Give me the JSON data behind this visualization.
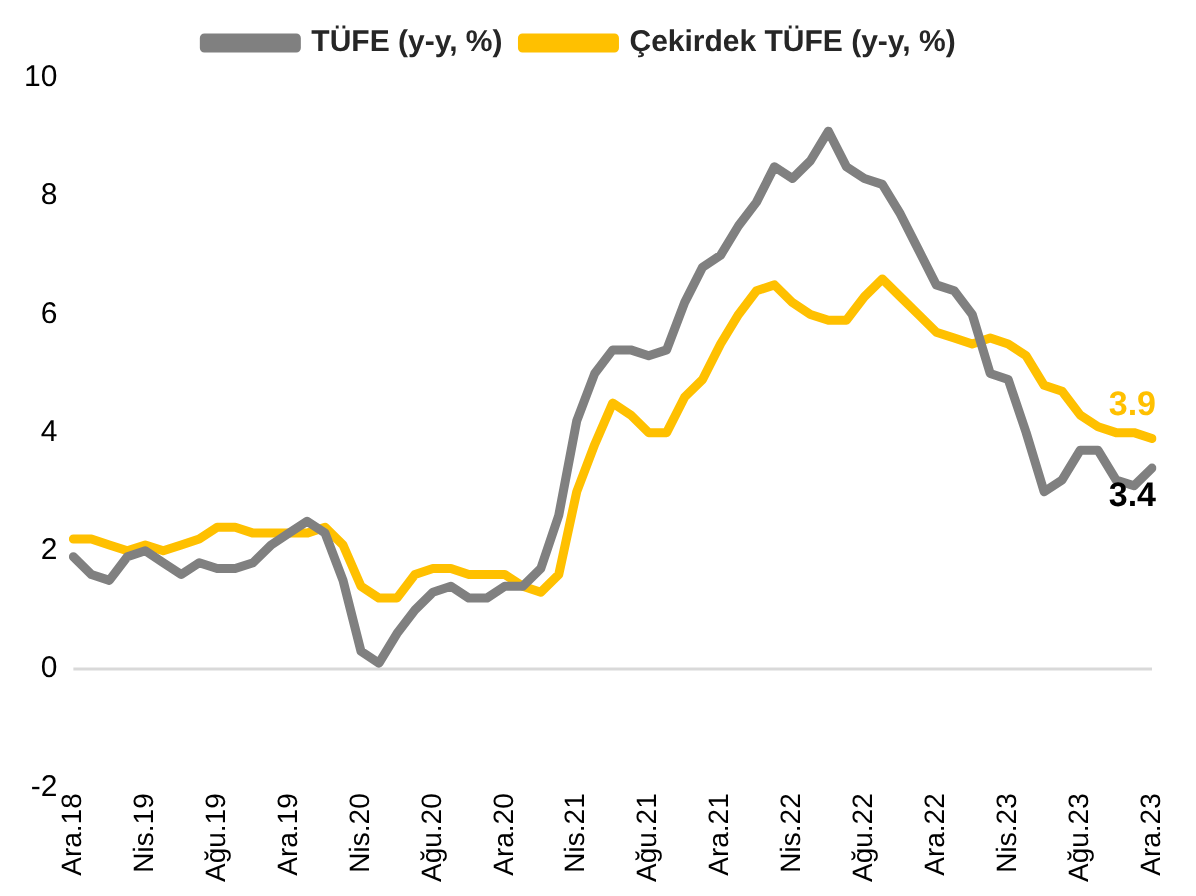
{
  "chart_data": {
    "type": "line",
    "categories": [
      "Ara.18",
      null,
      null,
      null,
      "Nis.19",
      null,
      null,
      null,
      "Ağu.19",
      null,
      null,
      null,
      "Ara.19",
      null,
      null,
      null,
      "Nis.20",
      null,
      null,
      null,
      "Ağu.20",
      null,
      null,
      null,
      "Ara.20",
      null,
      null,
      null,
      "Nis.21",
      null,
      null,
      null,
      "Ağu.21",
      null,
      null,
      null,
      "Ara.21",
      null,
      null,
      null,
      "Nis.22",
      null,
      null,
      null,
      "Ağu.22",
      null,
      null,
      null,
      "Ara.22",
      null,
      null,
      null,
      "Nis.23",
      null,
      null,
      null,
      "Ağu.23",
      null,
      null,
      null,
      "Ara.23"
    ],
    "series": [
      {
        "name": "TÜFE (y-y, %)",
        "color": "#808080",
        "values": [
          1.9,
          1.6,
          1.5,
          1.9,
          2.0,
          1.8,
          1.6,
          1.8,
          1.7,
          1.7,
          1.8,
          2.1,
          2.3,
          2.5,
          2.3,
          1.5,
          0.3,
          0.1,
          0.6,
          1.0,
          1.3,
          1.4,
          1.2,
          1.2,
          1.4,
          1.4,
          1.7,
          2.6,
          4.2,
          5.0,
          5.4,
          5.4,
          5.3,
          5.4,
          6.2,
          6.8,
          7.0,
          7.5,
          7.9,
          8.5,
          8.3,
          8.6,
          9.1,
          8.5,
          8.3,
          8.2,
          7.7,
          7.1,
          6.5,
          6.4,
          6.0,
          5.0,
          4.9,
          4.0,
          3.0,
          3.2,
          3.7,
          3.7,
          3.2,
          3.1,
          3.4
        ],
        "value_labels": [
          null,
          null,
          null,
          null,
          null,
          null,
          null,
          null,
          null,
          null,
          null,
          null,
          null,
          null,
          null,
          null,
          null,
          null,
          null,
          null,
          null,
          null,
          null,
          null,
          null,
          null,
          null,
          null,
          null,
          null,
          null,
          null,
          null,
          null,
          null,
          null,
          null,
          null,
          null,
          null,
          null,
          null,
          null,
          null,
          null,
          null,
          null,
          null,
          null,
          null,
          null,
          null,
          null,
          null,
          null,
          null,
          null,
          null,
          null,
          null,
          "3.4"
        ]
      },
      {
        "name": "Çekirdek TÜFE (y-y, %)",
        "color": "#ffc000",
        "values": [
          2.2,
          2.2,
          2.1,
          2.0,
          2.1,
          2.0,
          2.1,
          2.2,
          2.4,
          2.4,
          2.3,
          2.3,
          2.3,
          2.3,
          2.4,
          2.1,
          1.4,
          1.2,
          1.2,
          1.6,
          1.7,
          1.7,
          1.6,
          1.6,
          1.6,
          1.4,
          1.3,
          1.6,
          3.0,
          3.8,
          4.5,
          4.3,
          4.0,
          4.0,
          4.6,
          4.9,
          5.5,
          6.0,
          6.4,
          6.5,
          6.2,
          6.0,
          5.9,
          5.9,
          6.3,
          6.6,
          6.3,
          6.0,
          5.7,
          5.6,
          5.5,
          5.6,
          5.5,
          5.3,
          4.8,
          4.7,
          4.3,
          4.1,
          4.0,
          4.0,
          3.9
        ],
        "value_labels": [
          null,
          null,
          null,
          null,
          null,
          null,
          null,
          null,
          null,
          null,
          null,
          null,
          null,
          null,
          null,
          null,
          null,
          null,
          null,
          null,
          null,
          null,
          null,
          null,
          null,
          null,
          null,
          null,
          null,
          null,
          null,
          null,
          null,
          null,
          null,
          null,
          null,
          null,
          null,
          null,
          null,
          null,
          null,
          null,
          null,
          null,
          null,
          null,
          null,
          null,
          null,
          null,
          null,
          null,
          null,
          null,
          null,
          null,
          null,
          null,
          "3.9"
        ]
      }
    ],
    "ylim": [
      -2,
      10
    ],
    "yticks": [
      -2,
      0,
      2,
      4,
      6,
      8,
      10
    ],
    "grid": false,
    "ref_lines": [
      {
        "axis": "y",
        "value": 0,
        "color": "#d9d9d9"
      }
    ],
    "legend": "top",
    "marker": "none",
    "line_style": "solid"
  }
}
